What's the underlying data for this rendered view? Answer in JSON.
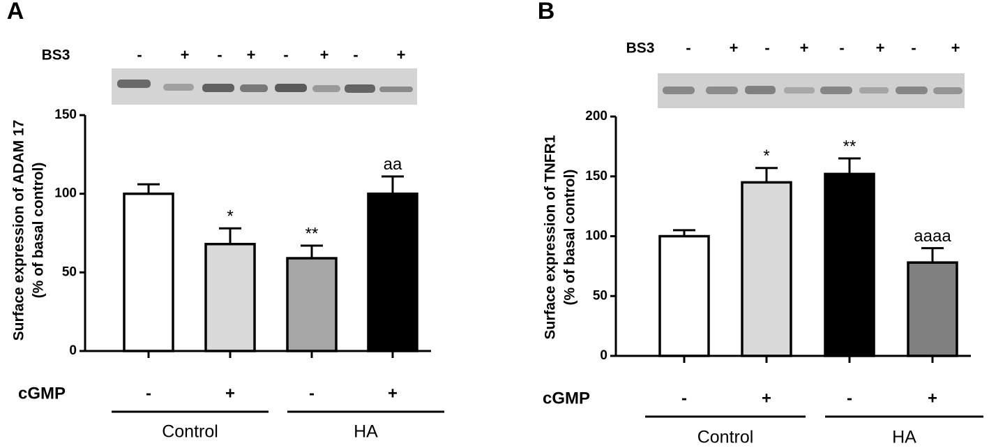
{
  "chart_data": [
    {
      "type": "bar",
      "panel_label": "A",
      "y_label": [
        "Surface expression of ADAM 17",
        "(% of basal control)"
      ],
      "bs3_label": "BS3",
      "bs3": [
        "-",
        "+",
        "-",
        "+",
        "-",
        "+",
        "-",
        "+"
      ],
      "treatment_label": "cGMP",
      "categories": [
        "-",
        "+",
        "-",
        "+"
      ],
      "groups": [
        "Control",
        "HA"
      ],
      "values": [
        100,
        68,
        59,
        100
      ],
      "errors": [
        6,
        10,
        8,
        11
      ],
      "colors": [
        "#ffffff",
        "#d9d9d9",
        "#a6a6a6",
        "#000000"
      ],
      "annotations": [
        null,
        "*",
        "**",
        "aa"
      ],
      "ylim": [
        0,
        150
      ],
      "yticks": [
        0,
        50,
        100,
        150
      ]
    },
    {
      "type": "bar",
      "panel_label": "B",
      "y_label": [
        "Surface expression of TNFR1",
        "(% of basal control)"
      ],
      "bs3_label": "BS3",
      "bs3": [
        "-",
        "+",
        "-",
        "+",
        "-",
        "+",
        "-",
        "+"
      ],
      "treatment_label": "cGMP",
      "categories": [
        "-",
        "+",
        "-",
        "+"
      ],
      "groups": [
        "Control",
        "HA"
      ],
      "values": [
        100,
        145,
        152,
        78
      ],
      "errors": [
        5,
        12,
        13,
        12
      ],
      "colors": [
        "#ffffff",
        "#d9d9d9",
        "#000000",
        "#808080"
      ],
      "annotations": [
        null,
        "*",
        "**",
        "aaaa"
      ],
      "ylim": [
        0,
        200
      ],
      "yticks": [
        0,
        50,
        100,
        150,
        200
      ]
    }
  ]
}
